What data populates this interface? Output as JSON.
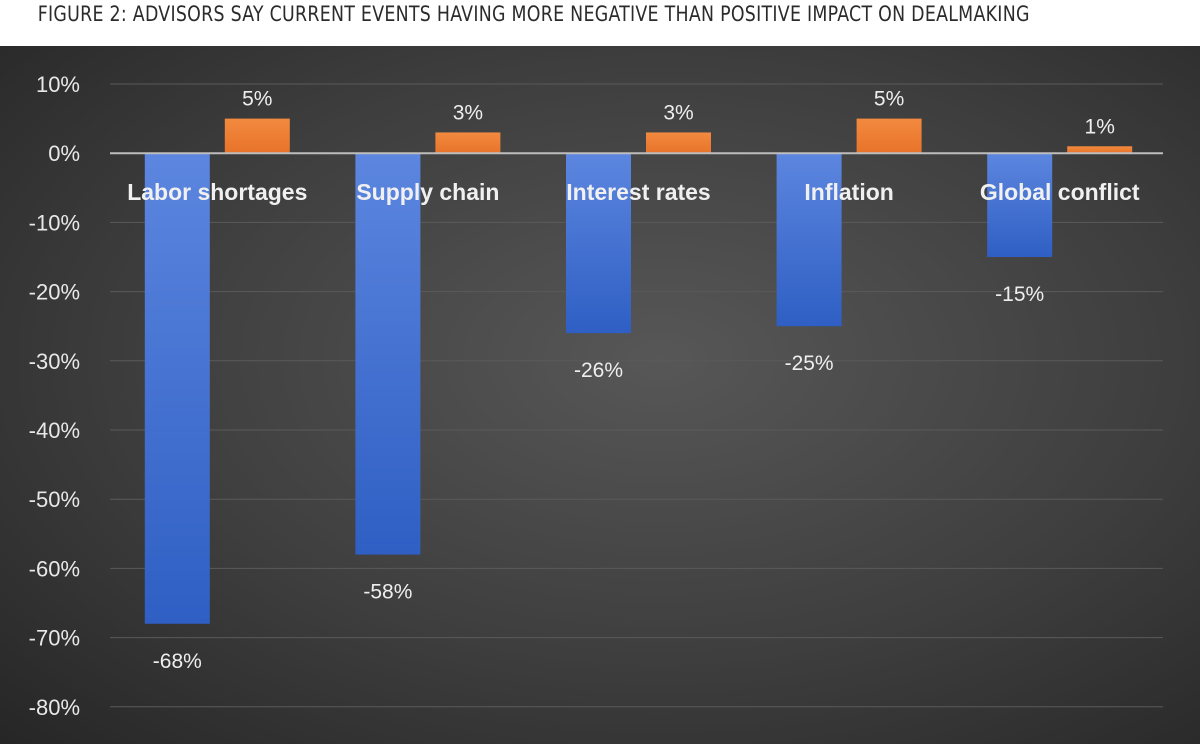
{
  "figure": {
    "title": "FIGURE 2: ADVISORS SAY CURRENT EVENTS HAVING MORE NEGATIVE THAN POSITIVE IMPACT ON DEALMAKING"
  },
  "colors": {
    "negative": "#3f6fd1",
    "positive": "#ee7d31",
    "background": "#3b3b3b",
    "grid": "#5a5a5a",
    "text": "#e8e8e8"
  },
  "chart_data": {
    "type": "bar",
    "categories": [
      "Labor shortages",
      "Supply chain",
      "Interest rates",
      "Inflation",
      "Global conflict"
    ],
    "series": [
      {
        "values": [
          -68,
          -58,
          -26,
          -25,
          -15
        ],
        "labels": [
          "-68%",
          "-58%",
          "-26%",
          "-25%",
          "-15%"
        ]
      },
      {
        "values": [
          5,
          3,
          3,
          5,
          1
        ],
        "labels": [
          "5%",
          "3%",
          "3%",
          "5%",
          "1%"
        ]
      }
    ],
    "ylim": [
      -80,
      10
    ],
    "yticks": [
      10,
      0,
      -10,
      -20,
      -30,
      -40,
      -50,
      -60,
      -70,
      -80
    ],
    "ytick_labels": [
      "10%",
      "0%",
      "-10%",
      "-20%",
      "-30%",
      "-40%",
      "-50%",
      "-60%",
      "-70%",
      "-80%"
    ],
    "grid": true,
    "legend": "none"
  }
}
